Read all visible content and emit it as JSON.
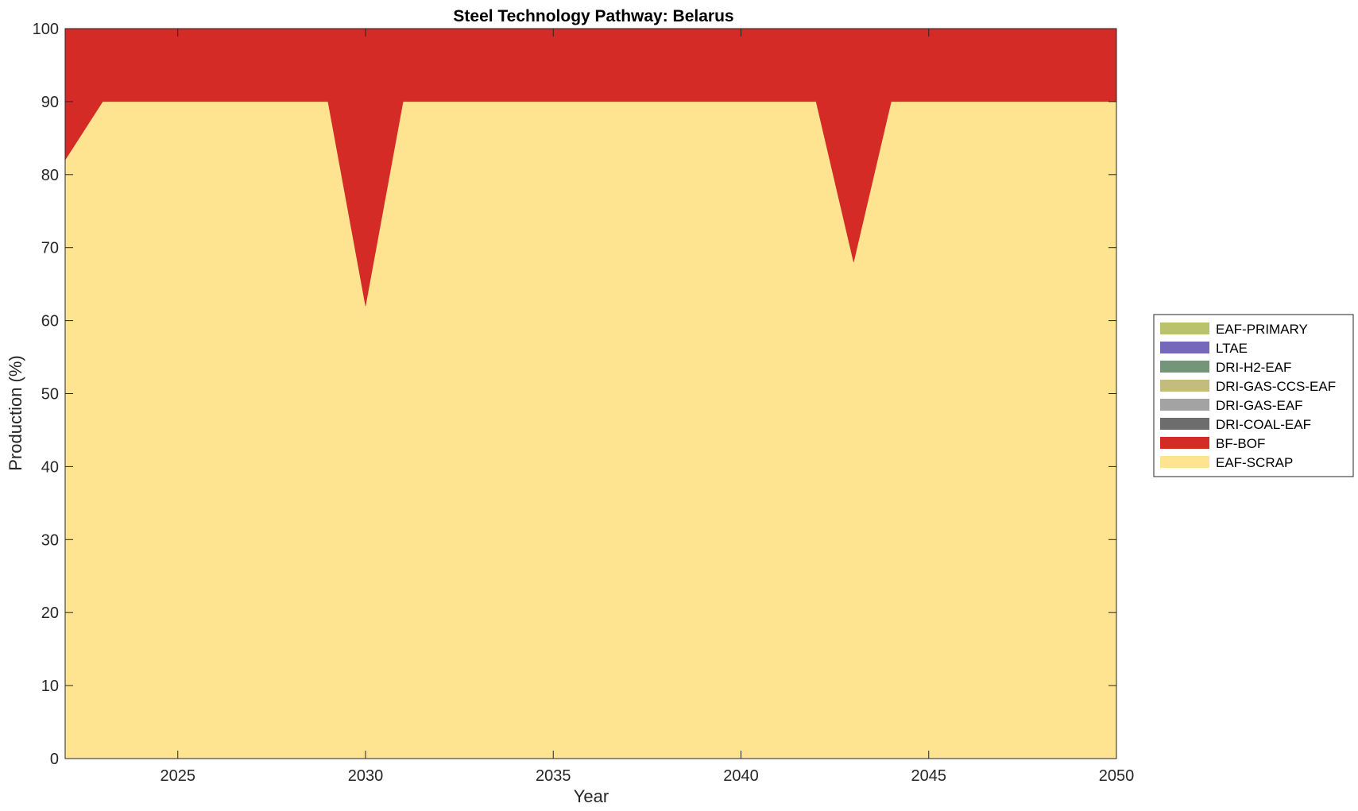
{
  "chart_data": {
    "type": "area",
    "stacked": true,
    "title": "Steel Technology Pathway: Belarus",
    "xlabel": "Year",
    "ylabel": "Production (%)",
    "xlim": [
      2022,
      2050
    ],
    "ylim": [
      0,
      100
    ],
    "xticks": [
      2025,
      2030,
      2035,
      2040,
      2045,
      2050
    ],
    "yticks": [
      0,
      10,
      20,
      30,
      40,
      50,
      60,
      70,
      80,
      90,
      100
    ],
    "grid": false,
    "legend_position": "right",
    "x": [
      2022,
      2023,
      2024,
      2025,
      2026,
      2027,
      2028,
      2029,
      2030,
      2031,
      2032,
      2033,
      2034,
      2035,
      2036,
      2037,
      2038,
      2039,
      2040,
      2041,
      2042,
      2043,
      2044,
      2045,
      2046,
      2047,
      2048,
      2049,
      2050
    ],
    "series": [
      {
        "name": "EAF-SCRAP",
        "color": "#fee391",
        "values": [
          82,
          90,
          90,
          90,
          90,
          90,
          90,
          90,
          62,
          90,
          90,
          90,
          90,
          90,
          90,
          90,
          90,
          90,
          90,
          90,
          90,
          68,
          90,
          90,
          90,
          90,
          90,
          90,
          90
        ]
      },
      {
        "name": "BF-BOF",
        "color": "#d42b26",
        "values": [
          18,
          10,
          10,
          10,
          10,
          10,
          10,
          10,
          38,
          10,
          10,
          10,
          10,
          10,
          10,
          10,
          10,
          10,
          10,
          10,
          10,
          32,
          10,
          10,
          10,
          10,
          10,
          10,
          10
        ]
      },
      {
        "name": "DRI-COAL-EAF",
        "color": "#6d6d6d",
        "values": [
          0,
          0,
          0,
          0,
          0,
          0,
          0,
          0,
          0,
          0,
          0,
          0,
          0,
          0,
          0,
          0,
          0,
          0,
          0,
          0,
          0,
          0,
          0,
          0,
          0,
          0,
          0,
          0,
          0
        ]
      },
      {
        "name": "DRI-GAS-EAF",
        "color": "#a3a3a3",
        "values": [
          0,
          0,
          0,
          0,
          0,
          0,
          0,
          0,
          0,
          0,
          0,
          0,
          0,
          0,
          0,
          0,
          0,
          0,
          0,
          0,
          0,
          0,
          0,
          0,
          0,
          0,
          0,
          0,
          0
        ]
      },
      {
        "name": "DRI-GAS-CCS-EAF",
        "color": "#c4bb7e",
        "values": [
          0,
          0,
          0,
          0,
          0,
          0,
          0,
          0,
          0,
          0,
          0,
          0,
          0,
          0,
          0,
          0,
          0,
          0,
          0,
          0,
          0,
          0,
          0,
          0,
          0,
          0,
          0,
          0,
          0
        ]
      },
      {
        "name": "DRI-H2-EAF",
        "color": "#74957a",
        "values": [
          0,
          0,
          0,
          0,
          0,
          0,
          0,
          0,
          0,
          0,
          0,
          0,
          0,
          0,
          0,
          0,
          0,
          0,
          0,
          0,
          0,
          0,
          0,
          0,
          0,
          0,
          0,
          0,
          0
        ]
      },
      {
        "name": "LTAE",
        "color": "#7568ba",
        "values": [
          0,
          0,
          0,
          0,
          0,
          0,
          0,
          0,
          0,
          0,
          0,
          0,
          0,
          0,
          0,
          0,
          0,
          0,
          0,
          0,
          0,
          0,
          0,
          0,
          0,
          0,
          0,
          0,
          0
        ]
      },
      {
        "name": "EAF-PRIMARY",
        "color": "#bac36b",
        "values": [
          0,
          0,
          0,
          0,
          0,
          0,
          0,
          0,
          0,
          0,
          0,
          0,
          0,
          0,
          0,
          0,
          0,
          0,
          0,
          0,
          0,
          0,
          0,
          0,
          0,
          0,
          0,
          0,
          0
        ]
      }
    ],
    "legend_order": [
      "EAF-PRIMARY",
      "LTAE",
      "DRI-H2-EAF",
      "DRI-GAS-CCS-EAF",
      "DRI-GAS-EAF",
      "DRI-COAL-EAF",
      "BF-BOF",
      "EAF-SCRAP"
    ]
  }
}
